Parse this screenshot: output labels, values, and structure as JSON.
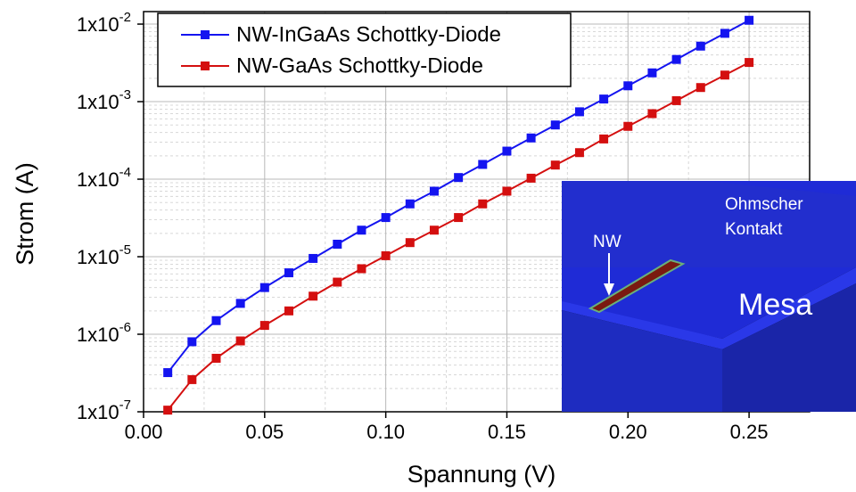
{
  "chart_data": {
    "type": "line",
    "xlabel": "Spannung (V)",
    "ylabel": "Strom (A)",
    "x": [
      0.01,
      0.02,
      0.03,
      0.04,
      0.05,
      0.06,
      0.07,
      0.08,
      0.09,
      0.1,
      0.11,
      0.12,
      0.13,
      0.14,
      0.15,
      0.16,
      0.17,
      0.18,
      0.19,
      0.2,
      0.21,
      0.22,
      0.23,
      0.24,
      0.25
    ],
    "series": [
      {
        "name": "NW-InGaAs Schottky-Diode",
        "color": "#1414f0",
        "values": [
          3.2e-07,
          8e-07,
          1.5e-06,
          2.5e-06,
          4e-06,
          6.2e-06,
          9.5e-06,
          1.45e-05,
          2.2e-05,
          3.2e-05,
          4.8e-05,
          7e-05,
          0.000105,
          0.000155,
          0.00023,
          0.00034,
          0.0005,
          0.00074,
          0.00108,
          0.0016,
          0.00235,
          0.0035,
          0.0052,
          0.0076,
          0.0112
        ]
      },
      {
        "name": "NW-GaAs Schottky-Diode",
        "color": "#d40f0f",
        "values": [
          1.05e-07,
          2.6e-07,
          4.9e-07,
          8.2e-07,
          1.3e-06,
          2e-06,
          3.1e-06,
          4.7e-06,
          7e-06,
          1.03e-05,
          1.52e-05,
          2.2e-05,
          3.2e-05,
          4.8e-05,
          7e-05,
          0.000103,
          0.000152,
          0.00022,
          0.00033,
          0.00048,
          0.0007,
          0.00103,
          0.00152,
          0.0022,
          0.0032
        ]
      }
    ],
    "xlim": [
      0,
      0.275
    ],
    "ylim": [
      1e-07,
      0.0145
    ],
    "xticks": [
      {
        "value": 0,
        "label": "0.00"
      },
      0.05,
      {
        "value": 0.1,
        "label": "0.10"
      },
      0.15,
      {
        "value": 0.2,
        "label": "0.20"
      },
      0.25
    ],
    "yticks": [
      {
        "value": 1e-07,
        "label": "1x10-7"
      },
      {
        "value": 1e-06,
        "label": "1x10-6"
      },
      {
        "value": 1e-05,
        "label": "1x10-5"
      },
      {
        "value": 0.0001,
        "label": "1x10-4"
      },
      {
        "value": 0.001,
        "label": "1x10-3"
      },
      {
        "value": 0.01,
        "label": "1x10-2"
      }
    ],
    "ylog": true,
    "grid": true,
    "minor_grid": true,
    "legend": "upper left",
    "inset": {
      "labels": [
        "NW",
        "Ohmscher Kontakt",
        "Mesa"
      ]
    }
  }
}
